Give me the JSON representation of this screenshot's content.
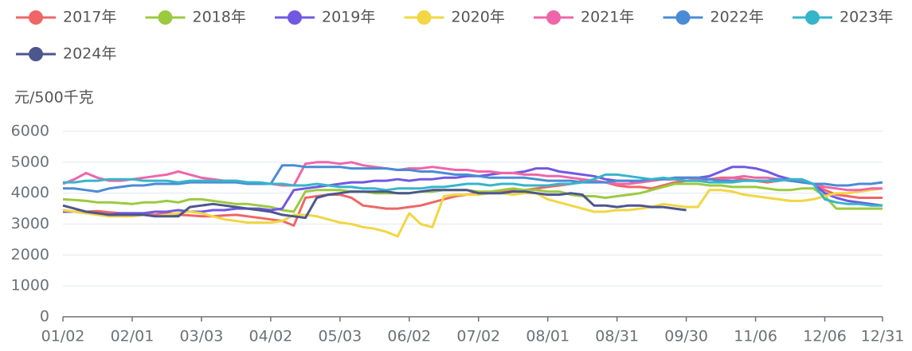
{
  "chart_data": {
    "type": "line",
    "y_axis_label": "元/500千克",
    "categories": [
      "01/02",
      null,
      null,
      null,
      null,
      null,
      "02/01",
      null,
      null,
      null,
      null,
      null,
      "03/03",
      null,
      null,
      null,
      null,
      null,
      "04/02",
      null,
      null,
      null,
      null,
      null,
      "05/03",
      null,
      null,
      null,
      null,
      null,
      "06/02",
      null,
      null,
      null,
      null,
      null,
      "07/02",
      null,
      null,
      null,
      null,
      null,
      "08/01",
      null,
      null,
      null,
      null,
      null,
      "08/31",
      null,
      null,
      null,
      null,
      null,
      "09/30",
      null,
      null,
      null,
      null,
      null,
      "11/06",
      null,
      null,
      null,
      null,
      null,
      "12/06",
      null,
      null,
      null,
      null,
      "12/31"
    ],
    "ylim": [
      0,
      6000
    ],
    "yticks": [
      0,
      1000,
      2000,
      3000,
      4000,
      5000,
      6000
    ],
    "grid": true,
    "series": [
      {
        "name": "2017年",
        "color": "#ee6666",
        "values": [
          3450,
          3400,
          3400,
          3420,
          3380,
          3350,
          3300,
          3320,
          3300,
          3350,
          3300,
          3280,
          3250,
          3250,
          3280,
          3300,
          3250,
          3200,
          3150,
          3100,
          2950,
          3850,
          3900,
          3950,
          3950,
          3850,
          3600,
          3550,
          3500,
          3500,
          3550,
          3600,
          3700,
          3800,
          3900,
          3950,
          4000,
          4000,
          4050,
          4100,
          4100,
          4150,
          4200,
          4250,
          4300,
          4400,
          4400,
          4350,
          4250,
          4200,
          4200,
          4150,
          4250,
          4350,
          4400,
          4400,
          4450,
          4500,
          4500,
          4450,
          4400,
          4350,
          4400,
          4450,
          4400,
          4300,
          4100,
          3950,
          3900,
          3850,
          3850,
          3850
        ]
      },
      {
        "name": "2018年",
        "color": "#9bca3e",
        "values": [
          3800,
          3780,
          3750,
          3700,
          3700,
          3680,
          3650,
          3700,
          3700,
          3750,
          3700,
          3800,
          3800,
          3750,
          3700,
          3650,
          3650,
          3600,
          3550,
          3450,
          3400,
          4050,
          4100,
          4100,
          4100,
          4050,
          4050,
          4000,
          4000,
          4000,
          4000,
          4050,
          4050,
          4100,
          4100,
          4100,
          4050,
          4050,
          4100,
          4150,
          4100,
          4100,
          4050,
          4050,
          3950,
          3900,
          3900,
          3850,
          3900,
          3950,
          4000,
          4100,
          4200,
          4300,
          4300,
          4300,
          4250,
          4250,
          4200,
          4200,
          4200,
          4150,
          4100,
          4100,
          4150,
          4150,
          3900,
          3500,
          3500,
          3500,
          3500,
          3500
        ]
      },
      {
        "name": "2019年",
        "color": "#7158e2",
        "values": [
          3400,
          3400,
          3350,
          3350,
          3300,
          3350,
          3350,
          3350,
          3400,
          3400,
          3450,
          3400,
          3400,
          3450,
          3450,
          3500,
          3500,
          3500,
          3450,
          3500,
          4100,
          4150,
          4200,
          4250,
          4300,
          4350,
          4350,
          4400,
          4400,
          4450,
          4400,
          4450,
          4450,
          4500,
          4500,
          4550,
          4550,
          4600,
          4650,
          4650,
          4700,
          4800,
          4800,
          4700,
          4650,
          4600,
          4550,
          4450,
          4400,
          4400,
          4350,
          4400,
          4450,
          4450,
          4500,
          4500,
          4550,
          4700,
          4850,
          4850,
          4800,
          4700,
          4550,
          4450,
          4400,
          4300,
          4000,
          3850,
          3750,
          3700,
          3650,
          3600
        ]
      },
      {
        "name": "2020年",
        "color": "#f2d643",
        "values": [
          3450,
          3400,
          3350,
          3300,
          3250,
          3250,
          3250,
          3300,
          3250,
          3300,
          3350,
          3400,
          3350,
          3250,
          3150,
          3100,
          3050,
          3050,
          3050,
          3100,
          3300,
          3300,
          3250,
          3150,
          3050,
          3000,
          2900,
          2850,
          2750,
          2600,
          3350,
          3000,
          2900,
          3900,
          3950,
          3950,
          3950,
          4000,
          4000,
          3950,
          4000,
          4000,
          3800,
          3700,
          3600,
          3500,
          3400,
          3400,
          3450,
          3450,
          3500,
          3550,
          3650,
          3600,
          3550,
          3550,
          4100,
          4100,
          4050,
          3950,
          3900,
          3850,
          3800,
          3750,
          3750,
          3800,
          3900,
          4000,
          4000,
          4050,
          4100,
          4150
        ]
      },
      {
        "name": "2021年",
        "color": "#f065a8",
        "values": [
          4300,
          4450,
          4650,
          4500,
          4400,
          4400,
          4450,
          4500,
          4550,
          4600,
          4700,
          4600,
          4500,
          4450,
          4400,
          4400,
          4350,
          4300,
          4300,
          4250,
          4250,
          4950,
          5000,
          5000,
          4950,
          5000,
          4900,
          4850,
          4800,
          4750,
          4800,
          4800,
          4850,
          4800,
          4750,
          4750,
          4700,
          4700,
          4650,
          4650,
          4600,
          4600,
          4550,
          4550,
          4500,
          4450,
          4400,
          4350,
          4300,
          4300,
          4350,
          4400,
          4450,
          4500,
          4500,
          4450,
          4450,
          4450,
          4500,
          4550,
          4500,
          4500,
          4450,
          4400,
          4400,
          4300,
          4200,
          4150,
          4100,
          4100,
          4150,
          4150
        ]
      },
      {
        "name": "2022年",
        "color": "#4a8bd6",
        "values": [
          4150,
          4150,
          4100,
          4050,
          4150,
          4200,
          4250,
          4250,
          4300,
          4300,
          4300,
          4350,
          4350,
          4350,
          4350,
          4350,
          4300,
          4300,
          4300,
          4900,
          4900,
          4850,
          4850,
          4850,
          4850,
          4800,
          4800,
          4800,
          4800,
          4750,
          4750,
          4700,
          4700,
          4650,
          4600,
          4600,
          4550,
          4500,
          4500,
          4500,
          4500,
          4450,
          4400,
          4400,
          4400,
          4350,
          4350,
          4350,
          4400,
          4400,
          4400,
          4450,
          4450,
          4500,
          4500,
          4500,
          4450,
          4400,
          4400,
          4400,
          4400,
          4400,
          4450,
          4400,
          4350,
          4300,
          4300,
          4250,
          4250,
          4300,
          4300,
          4350
        ]
      },
      {
        "name": "2023年",
        "color": "#36b5c9",
        "values": [
          4350,
          4350,
          4400,
          4400,
          4450,
          4450,
          4450,
          4400,
          4400,
          4400,
          4350,
          4400,
          4400,
          4400,
          4400,
          4400,
          4350,
          4350,
          4300,
          4300,
          4250,
          4250,
          4300,
          4250,
          4200,
          4200,
          4150,
          4150,
          4100,
          4150,
          4150,
          4150,
          4200,
          4200,
          4250,
          4300,
          4300,
          4250,
          4300,
          4300,
          4250,
          4250,
          4250,
          4300,
          4300,
          4350,
          4450,
          4600,
          4600,
          4550,
          4500,
          4450,
          4500,
          4450,
          4400,
          4400,
          4350,
          4350,
          4350,
          4400,
          4400,
          4400,
          4400,
          4450,
          4450,
          4300,
          3800,
          3700,
          3650,
          3650,
          3600,
          3600
        ]
      },
      {
        "name": "2024年",
        "color": "#4c568f",
        "values": [
          3600,
          3500,
          3400,
          3350,
          3300,
          3300,
          3300,
          3300,
          3250,
          3250,
          3250,
          3550,
          3600,
          3650,
          3600,
          3550,
          3500,
          3450,
          3400,
          3300,
          3250,
          3200,
          3850,
          3950,
          4000,
          4050,
          4050,
          4050,
          4050,
          4000,
          4000,
          4050,
          4100,
          4100,
          4100,
          4100,
          4000,
          4000,
          4000,
          4050,
          4050,
          4000,
          3950,
          3950,
          4000,
          3950,
          3600,
          3600,
          3550,
          3600,
          3600,
          3550,
          3550,
          3500,
          3450,
          null,
          null,
          null,
          null,
          null,
          null,
          null,
          null,
          null,
          null,
          null,
          null,
          null,
          null,
          null,
          null,
          null
        ]
      }
    ]
  }
}
